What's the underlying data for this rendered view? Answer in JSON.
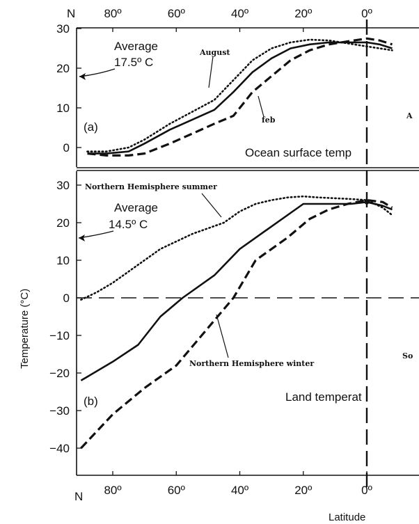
{
  "chart_data": [
    {
      "panel": "(a)",
      "type": "line",
      "x_ticks": [
        "80º",
        "60º",
        "40º",
        "20º",
        "0º"
      ],
      "x_tick_values": [
        80,
        60,
        40,
        20,
        0
      ],
      "x_corner_label": "N",
      "ylim": [
        -3,
        30
      ],
      "y_ticks": [
        0,
        10,
        20,
        30
      ],
      "annotation_title": "Ocean surface temp",
      "average_label_1": "Average",
      "average_label_2": "17.5º C",
      "average_value": 17.5,
      "series": [
        {
          "name": "August",
          "style": "dotted",
          "x": [
            88,
            82,
            75,
            70,
            62,
            55,
            48,
            42,
            36,
            30,
            24,
            18,
            12,
            8,
            4,
            0,
            -4,
            -8
          ],
          "y": [
            -1,
            -1,
            0,
            2,
            6,
            9,
            12,
            17,
            22,
            25,
            26.5,
            27.2,
            27,
            26.5,
            26,
            25.5,
            25,
            24.5
          ]
        },
        {
          "name": "",
          "style": "solid",
          "x": [
            88,
            82,
            75,
            70,
            62,
            55,
            48,
            42,
            36,
            30,
            24,
            18,
            12,
            8,
            4,
            0,
            -4,
            -8
          ],
          "y": [
            -1.5,
            -1.5,
            -1,
            1,
            4.5,
            7,
            9.5,
            14,
            19,
            22.5,
            25,
            26,
            26.5,
            26.5,
            26.5,
            26.5,
            26,
            25
          ]
        },
        {
          "name": "Feb",
          "style": "dashed",
          "x": [
            88,
            82,
            75,
            70,
            62,
            55,
            48,
            42,
            36,
            30,
            24,
            18,
            12,
            8,
            4,
            0,
            -4,
            -8
          ],
          "y": [
            -1.5,
            -2,
            -2,
            -1.5,
            1,
            3.5,
            6,
            8,
            14,
            18,
            22,
            24.5,
            26,
            26.5,
            27,
            27.5,
            27,
            26
          ]
        }
      ],
      "labels": {
        "august": "August",
        "feb": "feb",
        "clipped": "A"
      }
    },
    {
      "panel": "(b)",
      "type": "line",
      "x_ticks": [
        "80º",
        "60º",
        "40º",
        "20º",
        "0º"
      ],
      "x_tick_values": [
        80,
        60,
        40,
        20,
        0
      ],
      "x_corner_label": "N",
      "xlabel": "Latitude",
      "ylabel": "Temperature (°C)",
      "ylim": [
        -45,
        31
      ],
      "y_ticks": [
        30,
        20,
        10,
        0,
        -10,
        -20,
        -30,
        -40
      ],
      "annotation_title": "Land temperat",
      "average_label_1": "Average",
      "average_label_2": "14.5º C",
      "average_value": 14.5,
      "series": [
        {
          "name": "Northern Hemisphere summer",
          "style": "dotted",
          "x": [
            90,
            85,
            80,
            75,
            70,
            65,
            60,
            55,
            50,
            45,
            40,
            35,
            30,
            25,
            20,
            15,
            10,
            5,
            0,
            -5,
            -8
          ],
          "y": [
            -0.5,
            1.5,
            4,
            7,
            10,
            13,
            15,
            17,
            18.5,
            20,
            23,
            25,
            26,
            26.7,
            27,
            26.7,
            26.5,
            26.3,
            26,
            24,
            22
          ]
        },
        {
          "name": "",
          "style": "solid",
          "x": [
            90,
            80,
            72,
            65,
            58,
            48,
            40,
            30,
            20,
            15,
            10,
            5,
            0,
            -5,
            -8
          ],
          "y": [
            -22,
            -17,
            -12.5,
            -5,
            0,
            6,
            13,
            19,
            25,
            25,
            25,
            25,
            25.5,
            24.5,
            23.5
          ]
        },
        {
          "name": "Northern Hemisphere winter",
          "style": "dashed",
          "x": [
            90,
            80,
            70,
            60,
            50,
            42,
            35,
            25,
            18,
            12,
            6,
            0,
            -5,
            -8
          ],
          "y": [
            -40,
            -31,
            -24,
            -18,
            -8,
            0,
            10,
            16,
            21,
            23.5,
            25,
            26,
            25.5,
            24
          ]
        }
      ],
      "labels": {
        "summer": "Northern Hemisphere summer",
        "winter": "Northern Hemisphere winter",
        "clipped": "So"
      }
    }
  ]
}
